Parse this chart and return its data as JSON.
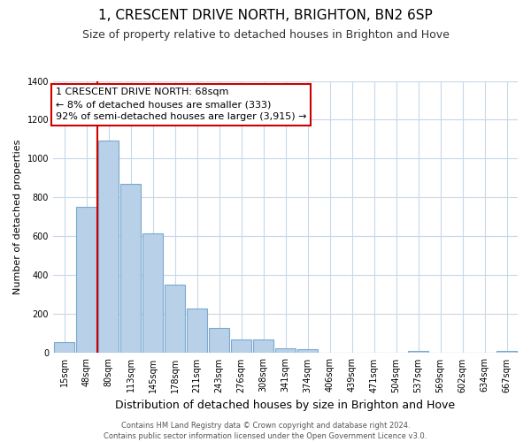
{
  "title": "1, CRESCENT DRIVE NORTH, BRIGHTON, BN2 6SP",
  "subtitle": "Size of property relative to detached houses in Brighton and Hove",
  "xlabel": "Distribution of detached houses by size in Brighton and Hove",
  "ylabel": "Number of detached properties",
  "categories": [
    "15sqm",
    "48sqm",
    "80sqm",
    "113sqm",
    "145sqm",
    "178sqm",
    "211sqm",
    "243sqm",
    "276sqm",
    "308sqm",
    "341sqm",
    "374sqm",
    "406sqm",
    "439sqm",
    "471sqm",
    "504sqm",
    "537sqm",
    "569sqm",
    "602sqm",
    "634sqm",
    "667sqm"
  ],
  "values": [
    55,
    750,
    1095,
    870,
    615,
    350,
    228,
    130,
    68,
    70,
    25,
    20,
    0,
    0,
    0,
    0,
    12,
    0,
    0,
    0,
    12
  ],
  "bar_color": "#b8d0e8",
  "bar_edge_color": "#7aaad0",
  "vline_x_idx": 2,
  "vline_color": "#cc0000",
  "ylim": [
    0,
    1400
  ],
  "yticks": [
    0,
    200,
    400,
    600,
    800,
    1000,
    1200,
    1400
  ],
  "annotation_title": "1 CRESCENT DRIVE NORTH: 68sqm",
  "annotation_line1": "← 8% of detached houses are smaller (333)",
  "annotation_line2": "92% of semi-detached houses are larger (3,915) →",
  "annotation_box_facecolor": "#ffffff",
  "annotation_border_color": "#cc0000",
  "footer_line1": "Contains HM Land Registry data © Crown copyright and database right 2024.",
  "footer_line2": "Contains public sector information licensed under the Open Government Licence v3.0.",
  "background_color": "#ffffff",
  "grid_color": "#c8d8e8",
  "title_fontsize": 11,
  "subtitle_fontsize": 9,
  "axis_label_fontsize": 8,
  "tick_fontsize": 7,
  "annotation_fontsize": 8,
  "footer_fontsize": 6
}
